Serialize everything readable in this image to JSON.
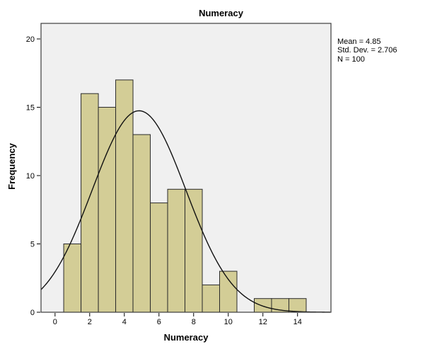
{
  "chart_data": {
    "type": "bar",
    "subtype": "histogram-with-normal-curve",
    "title": "Numeracy",
    "xlabel": "Numeracy",
    "ylabel": "Frequency",
    "legend_lines": [
      "Mean = 4.85",
      "Std. Dev. = 2.706",
      "N = 100"
    ],
    "legend_position": "top-right-outside",
    "bin_width": 1,
    "categories": [
      1,
      2,
      3,
      4,
      5,
      6,
      7,
      8,
      9,
      10,
      11,
      12,
      13,
      14
    ],
    "values": [
      5,
      16,
      15,
      17,
      13,
      8,
      9,
      9,
      2,
      3,
      0,
      1,
      1,
      1
    ],
    "normal_curve": {
      "mean": 4.85,
      "std_dev": 2.706,
      "n": 100
    },
    "axes": {
      "x_ticks": [
        0,
        2,
        4,
        6,
        8,
        10,
        12,
        14
      ],
      "y_ticks": [
        0,
        5,
        10,
        15,
        20
      ],
      "x_range": [
        -0.81,
        15.93
      ],
      "y_range": [
        0,
        21.14
      ],
      "grid": false
    },
    "colors": {
      "bar_fill": "#D3CD96",
      "bar_stroke": "#2B2B2B",
      "curve": "#111111",
      "frame": "#3C3C3C",
      "plot_bg": "#F0F0F0",
      "tick": "#000000"
    }
  }
}
